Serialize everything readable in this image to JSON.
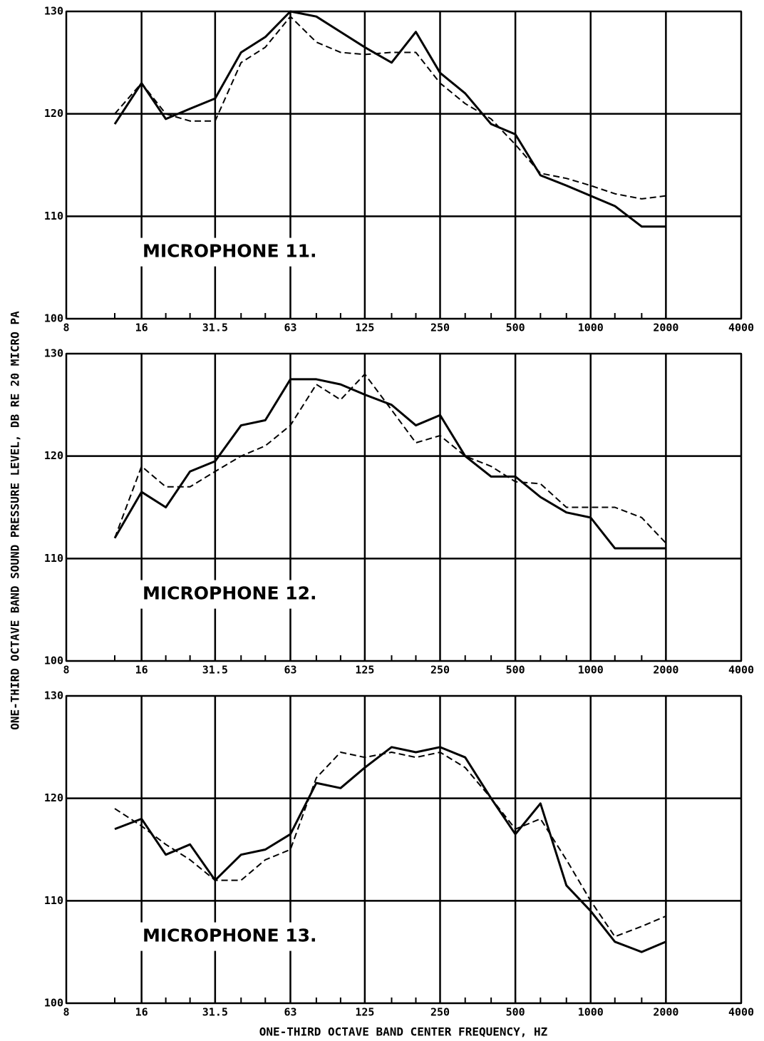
{
  "ylabel": "ONE-THIRD OCTAVE BAND SOUND PRESSURE LEVEL, DB RE 20 MICRO PA",
  "xlabel": "ONE-THIRD OCTAVE BAND CENTER FREQUENCY, HZ",
  "chart_data": [
    {
      "type": "line",
      "annotation": "MICROPHONE 11.",
      "xscale": "log",
      "grid": true,
      "x": [
        12.5,
        16,
        20,
        25,
        31.5,
        40,
        50,
        63,
        80,
        100,
        125,
        160,
        200,
        250,
        315,
        400,
        500,
        630,
        800,
        1000,
        1250,
        1600,
        2000
      ],
      "xlim": [
        8,
        4000
      ],
      "xticks": [
        8,
        16,
        31.5,
        63,
        125,
        250,
        500,
        1000,
        2000,
        4000
      ],
      "ylim": [
        100,
        130
      ],
      "yticks": [
        100,
        110,
        120,
        130
      ],
      "series": [
        {
          "color": "#000000",
          "style": "solid",
          "values": [
            119,
            123,
            119.5,
            120.5,
            121.5,
            126,
            127.5,
            130,
            129.5,
            128,
            126.5,
            125,
            128,
            124,
            122,
            119,
            118,
            114,
            113,
            112,
            111,
            109,
            109
          ]
        },
        {
          "color": "#000000",
          "style": "dashed",
          "values": [
            120,
            123,
            120,
            119.3,
            119.3,
            125,
            126.5,
            129.5,
            127,
            126,
            125.8,
            126,
            126,
            123,
            121,
            119.5,
            117,
            114.2,
            113.7,
            113,
            112.2,
            111.7,
            112
          ]
        }
      ]
    },
    {
      "type": "line",
      "annotation": "MICROPHONE 12.",
      "xscale": "log",
      "grid": true,
      "x": [
        12.5,
        16,
        20,
        25,
        31.5,
        40,
        50,
        63,
        80,
        100,
        125,
        160,
        200,
        250,
        315,
        400,
        500,
        630,
        800,
        1000,
        1250,
        1600,
        2000
      ],
      "xlim": [
        8,
        4000
      ],
      "xticks": [
        8,
        16,
        31.5,
        63,
        125,
        250,
        500,
        1000,
        2000,
        4000
      ],
      "ylim": [
        100,
        130
      ],
      "yticks": [
        100,
        110,
        120,
        130
      ],
      "series": [
        {
          "color": "#000000",
          "style": "solid",
          "values": [
            112,
            116.5,
            115,
            118.5,
            119.5,
            123,
            123.5,
            127.5,
            127.5,
            127,
            126,
            125,
            123,
            124,
            120,
            118,
            118,
            116,
            114.5,
            114,
            111,
            111,
            111
          ]
        },
        {
          "color": "#000000",
          "style": "dashed",
          "values": [
            112,
            119,
            117,
            117,
            118.5,
            120,
            121,
            123,
            127,
            125.5,
            128,
            124.5,
            121.3,
            122,
            120,
            119,
            117.5,
            117.3,
            115,
            115,
            115,
            114,
            111.5
          ]
        }
      ]
    },
    {
      "type": "line",
      "annotation": "MICROPHONE 13.",
      "xscale": "log",
      "grid": true,
      "x": [
        12.5,
        16,
        20,
        25,
        31.5,
        40,
        50,
        63,
        80,
        100,
        125,
        160,
        200,
        250,
        315,
        400,
        500,
        630,
        800,
        1000,
        1250,
        1600,
        2000
      ],
      "xlim": [
        8,
        4000
      ],
      "xticks": [
        8,
        16,
        31.5,
        63,
        125,
        250,
        500,
        1000,
        2000,
        4000
      ],
      "ylim": [
        100,
        130
      ],
      "yticks": [
        100,
        110,
        120,
        130
      ],
      "series": [
        {
          "color": "#000000",
          "style": "solid",
          "values": [
            117,
            118,
            114.5,
            115.5,
            112,
            114.5,
            115,
            116.5,
            121.5,
            121,
            123,
            125,
            124.5,
            125,
            124,
            120,
            116.5,
            119.5,
            111.5,
            109,
            106,
            105,
            106
          ]
        },
        {
          "color": "#000000",
          "style": "dashed",
          "values": [
            119,
            117.3,
            115.5,
            114,
            112,
            112,
            114,
            115,
            122,
            124.5,
            124,
            124.5,
            124,
            124.5,
            123,
            120,
            117,
            118,
            114,
            110,
            106.5,
            107.5,
            108.5
          ]
        }
      ]
    }
  ]
}
